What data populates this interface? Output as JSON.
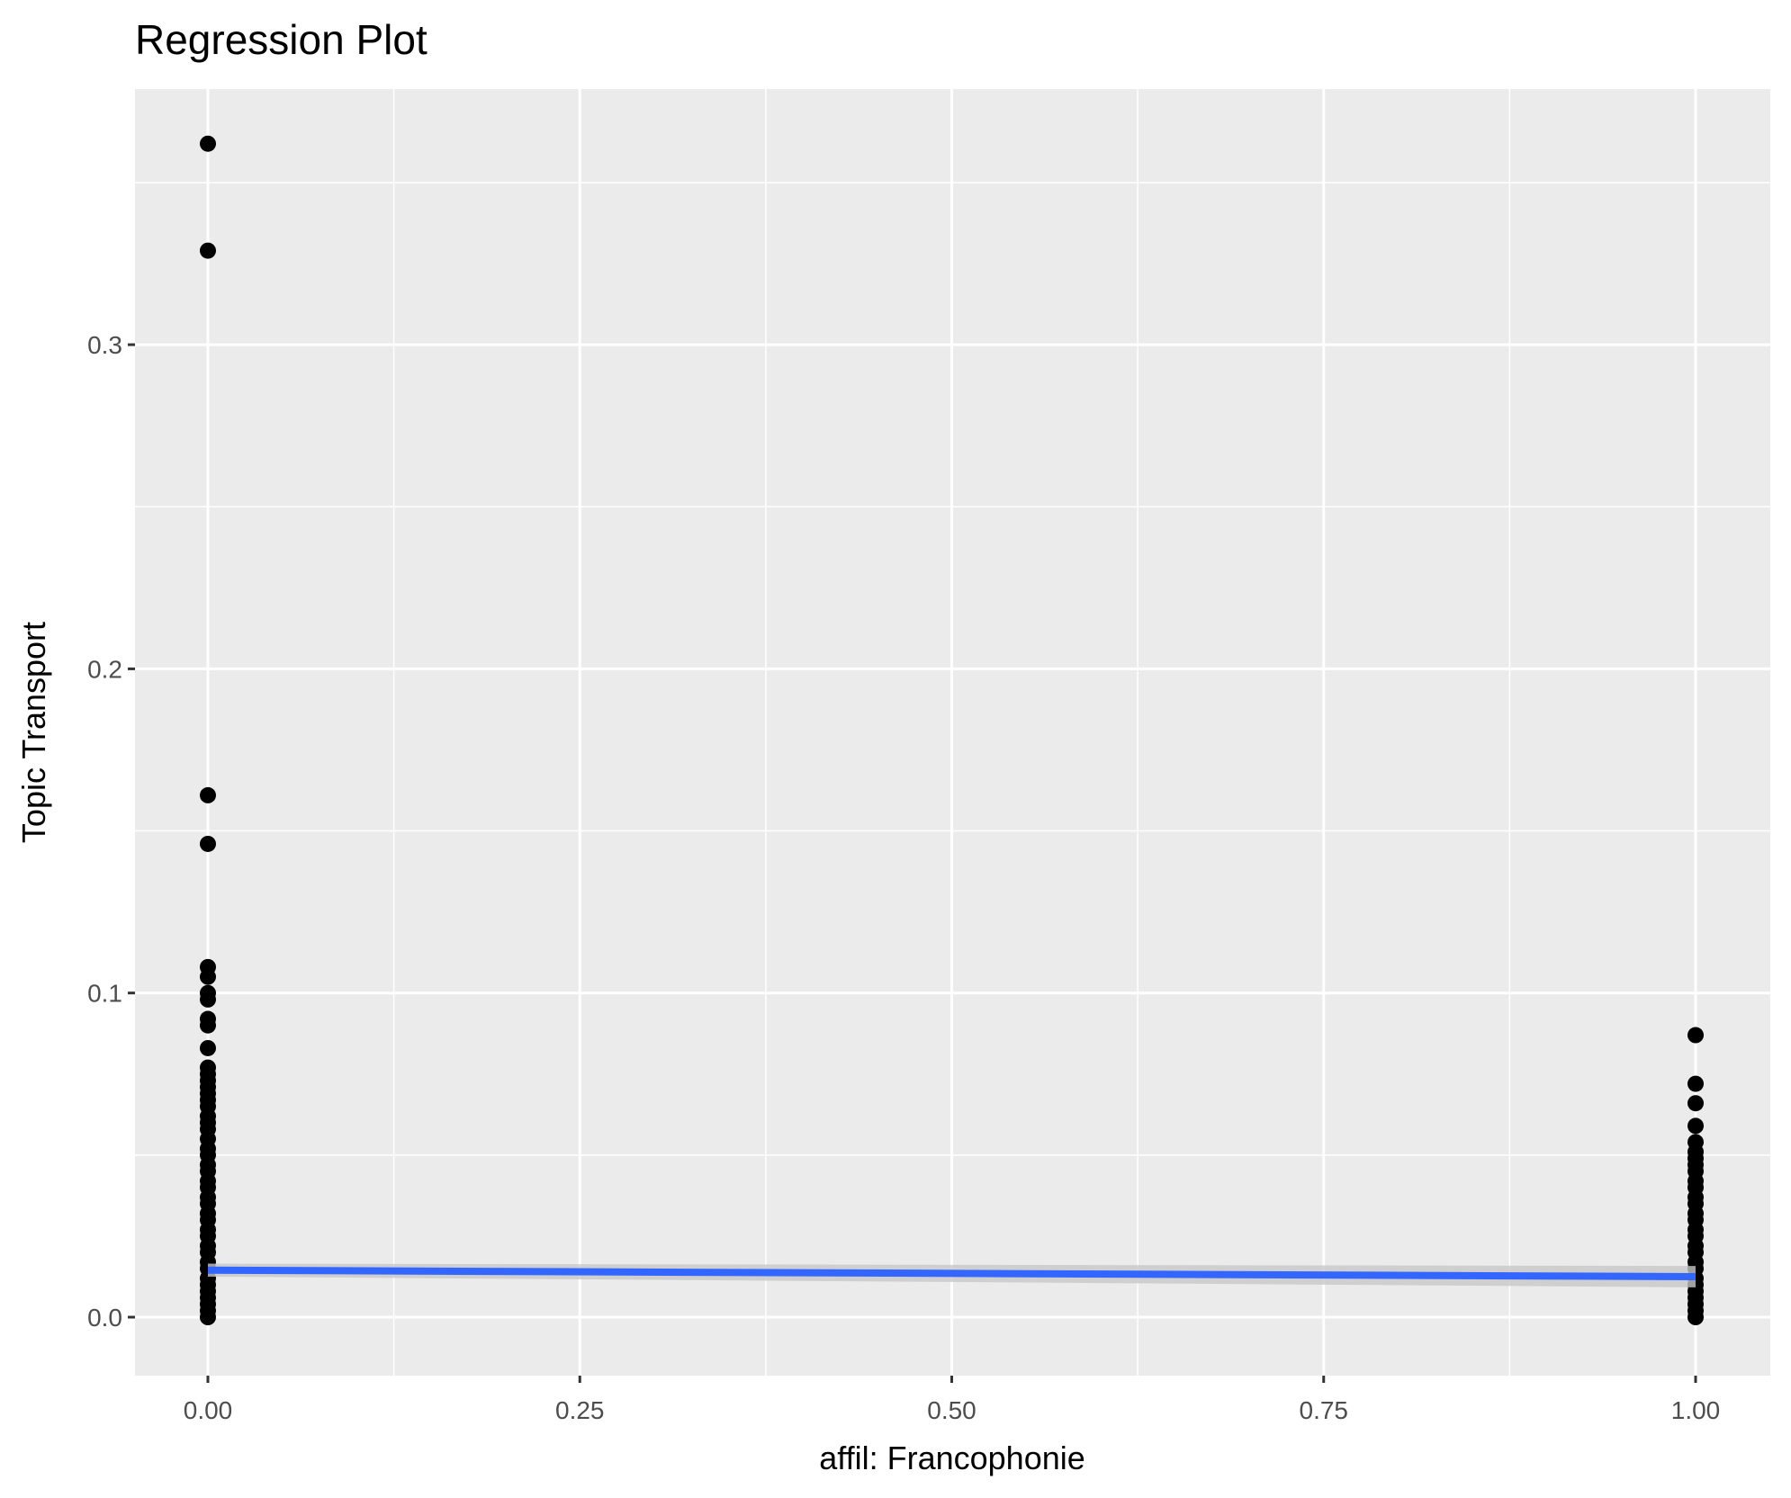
{
  "chart_data": {
    "type": "scatter",
    "title": "Regression Plot",
    "xlabel": "affil: Francophonie",
    "ylabel": "Topic Transport",
    "xlim": [
      -0.05,
      1.05
    ],
    "ylim": [
      -0.018,
      0.37
    ],
    "x_ticks": [
      0,
      0.25,
      0.5,
      0.75,
      1
    ],
    "x_tick_labels": [
      "0.00",
      "0.25",
      "0.50",
      "0.75",
      "1.00"
    ],
    "y_ticks": [
      0,
      0.1,
      0.2,
      0.3
    ],
    "y_tick_labels": [
      "0.0",
      "0.1",
      "0.2",
      "0.3"
    ],
    "grid": true,
    "series": [
      {
        "name": "x=0",
        "x": 0,
        "y": [
          0.362,
          0.329,
          0.161,
          0.146,
          0.108,
          0.105,
          0.1,
          0.098,
          0.092,
          0.09,
          0.083,
          0.077,
          0.075,
          0.073,
          0.071,
          0.069,
          0.067,
          0.065,
          0.062,
          0.06,
          0.058,
          0.055,
          0.052,
          0.05,
          0.047,
          0.045,
          0.042,
          0.04,
          0.037,
          0.035,
          0.032,
          0.03,
          0.027,
          0.025,
          0.022,
          0.02,
          0.017,
          0.015,
          0.012,
          0.01,
          0.008,
          0.006,
          0.004,
          0.002,
          0.0
        ]
      },
      {
        "name": "x=1",
        "x": 1,
        "y": [
          0.087,
          0.072,
          0.066,
          0.059,
          0.054,
          0.051,
          0.049,
          0.047,
          0.045,
          0.042,
          0.04,
          0.037,
          0.035,
          0.032,
          0.03,
          0.027,
          0.025,
          0.022,
          0.02,
          0.017,
          0.015,
          0.012,
          0.01,
          0.008,
          0.006,
          0.004,
          0.002,
          0.0
        ]
      }
    ],
    "regression": {
      "x": [
        0,
        1
      ],
      "y": [
        0.0145,
        0.0125
      ],
      "ci_lower": [
        0.0125,
        0.0092
      ],
      "ci_upper": [
        0.0165,
        0.0158
      ],
      "color": "#3366ff"
    },
    "colors": {
      "panel": "#ebebeb",
      "grid": "#ffffff",
      "points": "#000000",
      "ribbon": "#c8c8c8"
    }
  }
}
